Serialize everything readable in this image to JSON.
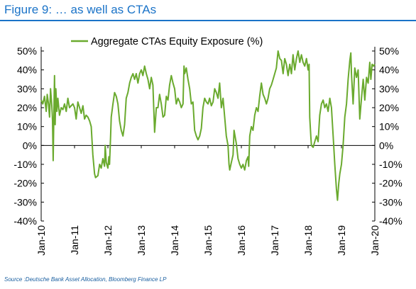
{
  "header": {
    "figure_title": "Figure 9: … as well as CTAs"
  },
  "footer": {
    "source": "Source :Deutsche Bank Asset Allocation, Bloomberg Finance LP"
  },
  "colors": {
    "series_line": "#6aaa2e",
    "title_blue": "#1a73c8"
  },
  "chart_data": {
    "type": "line",
    "title": "",
    "xlabel": "",
    "ylabel": "",
    "ylim": [
      -40,
      50
    ],
    "yticks": [
      50,
      40,
      30,
      20,
      10,
      0,
      -10,
      -20,
      -30,
      -40
    ],
    "ytick_labels": [
      "50%",
      "40%",
      "30%",
      "20%",
      "10%",
      "0%",
      "-10%",
      "-20%",
      "-30%",
      "-40%"
    ],
    "xlim": [
      2010,
      2020
    ],
    "xticks": [
      2010,
      2011,
      2012,
      2013,
      2014,
      2015,
      2016,
      2017,
      2018,
      2019,
      2020
    ],
    "xtick_labels": [
      "Jan-10",
      "Jan-11",
      "Jan-12",
      "Jan-13",
      "Jan-14",
      "Jan-15",
      "Jan-16",
      "Jan-17",
      "Jan-18",
      "Jan-19",
      "Jan-20"
    ],
    "legend": {
      "position": "top-center",
      "entries": [
        "Aggregate CTAs Equity Exposure (%)"
      ]
    },
    "grid": false,
    "dual_y_axis": true,
    "series": [
      {
        "name": "Aggregate CTAs Equity Exposure (%)",
        "points": [
          [
            2010.0,
            24
          ],
          [
            2010.05,
            22
          ],
          [
            2010.1,
            26
          ],
          [
            2010.15,
            18
          ],
          [
            2010.18,
            27
          ],
          [
            2010.22,
            22
          ],
          [
            2010.25,
            15
          ],
          [
            2010.28,
            30
          ],
          [
            2010.32,
            21
          ],
          [
            2010.34,
            13
          ],
          [
            2010.36,
            -8
          ],
          [
            2010.38,
            17
          ],
          [
            2010.4,
            37
          ],
          [
            2010.42,
            11
          ],
          [
            2010.44,
            30
          ],
          [
            2010.47,
            18
          ],
          [
            2010.5,
            25
          ],
          [
            2010.55,
            16
          ],
          [
            2010.6,
            20
          ],
          [
            2010.65,
            19
          ],
          [
            2010.7,
            22
          ],
          [
            2010.75,
            18
          ],
          [
            2010.8,
            25
          ],
          [
            2010.85,
            20
          ],
          [
            2010.9,
            21
          ],
          [
            2010.95,
            22
          ],
          [
            2011.0,
            20
          ],
          [
            2011.05,
            14
          ],
          [
            2011.1,
            23
          ],
          [
            2011.15,
            20
          ],
          [
            2011.2,
            17
          ],
          [
            2011.25,
            21
          ],
          [
            2011.3,
            14
          ],
          [
            2011.35,
            16
          ],
          [
            2011.4,
            15
          ],
          [
            2011.45,
            13
          ],
          [
            2011.5,
            10
          ],
          [
            2011.55,
            -5
          ],
          [
            2011.6,
            -15
          ],
          [
            2011.63,
            -17
          ],
          [
            2011.7,
            -16
          ],
          [
            2011.75,
            -10
          ],
          [
            2011.8,
            -12
          ],
          [
            2011.85,
            -7
          ],
          [
            2011.9,
            -11
          ],
          [
            2011.92,
            0
          ],
          [
            2011.95,
            -9
          ],
          [
            2012.0,
            -12
          ],
          [
            2012.03,
            -6
          ],
          [
            2012.05,
            -10
          ],
          [
            2012.08,
            5
          ],
          [
            2012.1,
            15
          ],
          [
            2012.15,
            22
          ],
          [
            2012.2,
            28
          ],
          [
            2012.25,
            26
          ],
          [
            2012.3,
            22
          ],
          [
            2012.35,
            13
          ],
          [
            2012.4,
            8
          ],
          [
            2012.45,
            5
          ],
          [
            2012.5,
            11
          ],
          [
            2012.55,
            25
          ],
          [
            2012.6,
            28
          ],
          [
            2012.65,
            33
          ],
          [
            2012.7,
            36
          ],
          [
            2012.75,
            38
          ],
          [
            2012.8,
            35
          ],
          [
            2012.85,
            38
          ],
          [
            2012.9,
            33
          ],
          [
            2012.95,
            38
          ],
          [
            2013.0,
            40
          ],
          [
            2013.05,
            37
          ],
          [
            2013.1,
            42
          ],
          [
            2013.15,
            38
          ],
          [
            2013.2,
            35
          ],
          [
            2013.25,
            30
          ],
          [
            2013.3,
            36
          ],
          [
            2013.35,
            32
          ],
          [
            2013.4,
            7
          ],
          [
            2013.45,
            20
          ],
          [
            2013.5,
            20
          ],
          [
            2013.55,
            27
          ],
          [
            2013.6,
            22
          ],
          [
            2013.65,
            15
          ],
          [
            2013.7,
            16
          ],
          [
            2013.75,
            26
          ],
          [
            2013.8,
            24
          ],
          [
            2013.85,
            32
          ],
          [
            2013.9,
            37
          ],
          [
            2013.95,
            33
          ],
          [
            2014.0,
            30
          ],
          [
            2014.05,
            22
          ],
          [
            2014.1,
            25
          ],
          [
            2014.15,
            23
          ],
          [
            2014.2,
            20
          ],
          [
            2014.25,
            22
          ],
          [
            2014.28,
            42
          ],
          [
            2014.3,
            38
          ],
          [
            2014.35,
            41
          ],
          [
            2014.4,
            35
          ],
          [
            2014.45,
            30
          ],
          [
            2014.5,
            22
          ],
          [
            2014.55,
            23
          ],
          [
            2014.6,
            8
          ],
          [
            2014.65,
            5
          ],
          [
            2014.7,
            3
          ],
          [
            2014.75,
            5
          ],
          [
            2014.8,
            9
          ],
          [
            2014.85,
            20
          ],
          [
            2014.9,
            25
          ],
          [
            2014.95,
            23
          ],
          [
            2015.0,
            22
          ],
          [
            2015.05,
            25
          ],
          [
            2015.1,
            21
          ],
          [
            2015.15,
            23
          ],
          [
            2015.2,
            30
          ],
          [
            2015.25,
            28
          ],
          [
            2015.3,
            25
          ],
          [
            2015.35,
            33
          ],
          [
            2015.4,
            20
          ],
          [
            2015.45,
            25
          ],
          [
            2015.5,
            15
          ],
          [
            2015.55,
            5
          ],
          [
            2015.6,
            0
          ],
          [
            2015.63,
            -10
          ],
          [
            2015.65,
            -13
          ],
          [
            2015.7,
            -9
          ],
          [
            2015.75,
            -5
          ],
          [
            2015.78,
            8
          ],
          [
            2015.8,
            6
          ],
          [
            2015.85,
            1
          ],
          [
            2015.9,
            -7
          ],
          [
            2015.95,
            -10
          ],
          [
            2016.0,
            -12
          ],
          [
            2016.05,
            -10
          ],
          [
            2016.1,
            -13
          ],
          [
            2016.15,
            -8
          ],
          [
            2016.2,
            -6
          ],
          [
            2016.22,
            -11
          ],
          [
            2016.25,
            5
          ],
          [
            2016.3,
            10
          ],
          [
            2016.35,
            8
          ],
          [
            2016.4,
            16
          ],
          [
            2016.45,
            20
          ],
          [
            2016.5,
            18
          ],
          [
            2016.55,
            26
          ],
          [
            2016.6,
            33
          ],
          [
            2016.65,
            27
          ],
          [
            2016.7,
            25
          ],
          [
            2016.75,
            22
          ],
          [
            2016.8,
            25
          ],
          [
            2016.85,
            30
          ],
          [
            2016.9,
            32
          ],
          [
            2016.95,
            35
          ],
          [
            2017.0,
            38
          ],
          [
            2017.05,
            41
          ],
          [
            2017.1,
            50
          ],
          [
            2017.15,
            46
          ],
          [
            2017.2,
            45
          ],
          [
            2017.25,
            38
          ],
          [
            2017.3,
            46
          ],
          [
            2017.35,
            43
          ],
          [
            2017.4,
            37
          ],
          [
            2017.45,
            43
          ],
          [
            2017.5,
            38
          ],
          [
            2017.55,
            48
          ],
          [
            2017.6,
            40
          ],
          [
            2017.65,
            46
          ],
          [
            2017.7,
            50
          ],
          [
            2017.75,
            44
          ],
          [
            2017.8,
            48
          ],
          [
            2017.85,
            44
          ],
          [
            2017.9,
            42
          ],
          [
            2017.95,
            46
          ],
          [
            2018.0,
            40
          ],
          [
            2018.03,
            43
          ],
          [
            2018.05,
            15
          ],
          [
            2018.08,
            5
          ],
          [
            2018.1,
            0
          ],
          [
            2018.15,
            -1
          ],
          [
            2018.2,
            2
          ],
          [
            2018.25,
            5
          ],
          [
            2018.3,
            2
          ],
          [
            2018.35,
            16
          ],
          [
            2018.4,
            22
          ],
          [
            2018.45,
            24
          ],
          [
            2018.5,
            20
          ],
          [
            2018.55,
            22
          ],
          [
            2018.6,
            18
          ],
          [
            2018.65,
            25
          ],
          [
            2018.7,
            20
          ],
          [
            2018.75,
            5
          ],
          [
            2018.8,
            -10
          ],
          [
            2018.85,
            -23
          ],
          [
            2018.88,
            -29
          ],
          [
            2018.92,
            -20
          ],
          [
            2018.95,
            -15
          ],
          [
            2019.0,
            -10
          ],
          [
            2019.05,
            0
          ],
          [
            2019.1,
            15
          ],
          [
            2019.15,
            22
          ],
          [
            2019.2,
            35
          ],
          [
            2019.25,
            45
          ],
          [
            2019.28,
            49
          ],
          [
            2019.3,
            38
          ],
          [
            2019.35,
            22
          ],
          [
            2019.4,
            41
          ],
          [
            2019.45,
            36
          ],
          [
            2019.5,
            40
          ],
          [
            2019.55,
            14
          ],
          [
            2019.6,
            25
          ],
          [
            2019.65,
            35
          ],
          [
            2019.7,
            24
          ],
          [
            2019.75,
            36
          ],
          [
            2019.8,
            33
          ],
          [
            2019.85,
            44
          ],
          [
            2019.88,
            35
          ],
          [
            2019.92,
            43
          ],
          [
            2019.96,
            42
          ],
          [
            2020.0,
            43
          ]
        ]
      }
    ]
  }
}
